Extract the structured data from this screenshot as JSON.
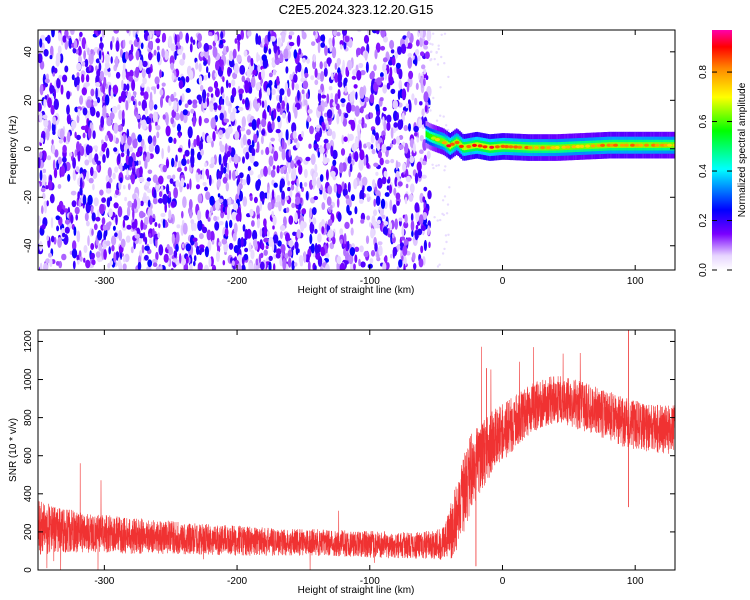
{
  "title": "C2E5.2024.323.12.20.G15",
  "chart_data": [
    {
      "type": "heatmap",
      "xlabel": "Height of straight line (km)",
      "ylabel": "Frequency (Hz)",
      "xlim": [
        -350,
        130
      ],
      "ylim": [
        -50,
        49
      ],
      "xticks": [
        -300,
        -200,
        -100,
        0,
        100
      ],
      "yticks": [
        -40,
        -20,
        0,
        20,
        40
      ],
      "colorbar": {
        "label": "Normalized spectral amplitude",
        "range": [
          0,
          0.97
        ],
        "ticks": [
          0.0,
          0.2,
          0.4,
          0.6,
          0.8
        ],
        "colormap": [
          "#ffffff",
          "#7a00ff",
          "#0000ff",
          "#00ffff",
          "#00ff00",
          "#ffff00",
          "#ff8800",
          "#ff0000",
          "#ff00aa"
        ]
      },
      "noise_region_x": [
        -350,
        -55
      ],
      "signal_trace": {
        "x": [
          -58,
          -55,
          -50,
          -45,
          -40,
          -35,
          -30,
          -25,
          -20,
          -10,
          0,
          20,
          40,
          60,
          80,
          100,
          130
        ],
        "y": [
          6,
          5,
          4,
          3,
          1,
          3,
          0.5,
          1,
          1.5,
          0.5,
          1,
          0.5,
          0.5,
          1,
          1.5,
          1.5,
          1.5
        ],
        "amplitude": [
          0.55,
          0.6,
          0.7,
          0.75,
          0.9,
          0.8,
          0.9,
          0.85,
          0.9,
          0.9,
          0.85,
          0.8,
          0.75,
          0.75,
          0.8,
          0.8,
          0.75
        ]
      }
    },
    {
      "type": "line",
      "xlabel": "Height of straight line (km)",
      "ylabel": "SNR (10 * v/v)",
      "xlim": [
        -350,
        130
      ],
      "ylim": [
        0,
        1260
      ],
      "xticks": [
        -300,
        -200,
        -100,
        0,
        100
      ],
      "yticks": [
        0,
        200,
        400,
        600,
        800,
        1000,
        1200
      ],
      "color": "#f03232",
      "series": [
        {
          "x": [
            -350,
            -340,
            -320,
            -300,
            -280,
            -260,
            -240,
            -220,
            -200,
            -180,
            -160,
            -140,
            -120,
            -100,
            -80,
            -60,
            -45,
            -40,
            -35,
            -30,
            -25,
            -20,
            -15,
            -10,
            -5,
            0,
            10,
            20,
            30,
            40,
            50,
            60,
            70,
            80,
            90,
            100,
            110,
            120,
            130
          ],
          "mean": [
            230,
            215,
            200,
            190,
            180,
            175,
            165,
            160,
            155,
            150,
            145,
            145,
            140,
            135,
            130,
            130,
            140,
            180,
            280,
            380,
            480,
            560,
            600,
            650,
            690,
            720,
            780,
            840,
            880,
            900,
            880,
            860,
            840,
            810,
            780,
            760,
            750,
            740,
            740
          ],
          "spread": [
            150,
            130,
            110,
            100,
            95,
            90,
            85,
            80,
            80,
            75,
            70,
            70,
            70,
            70,
            70,
            70,
            90,
            140,
            180,
            200,
            220,
            200,
            180,
            170,
            160,
            150,
            140,
            130,
            130,
            130,
            130,
            130,
            130,
            130,
            130,
            130,
            130,
            130,
            130
          ]
        }
      ]
    }
  ]
}
